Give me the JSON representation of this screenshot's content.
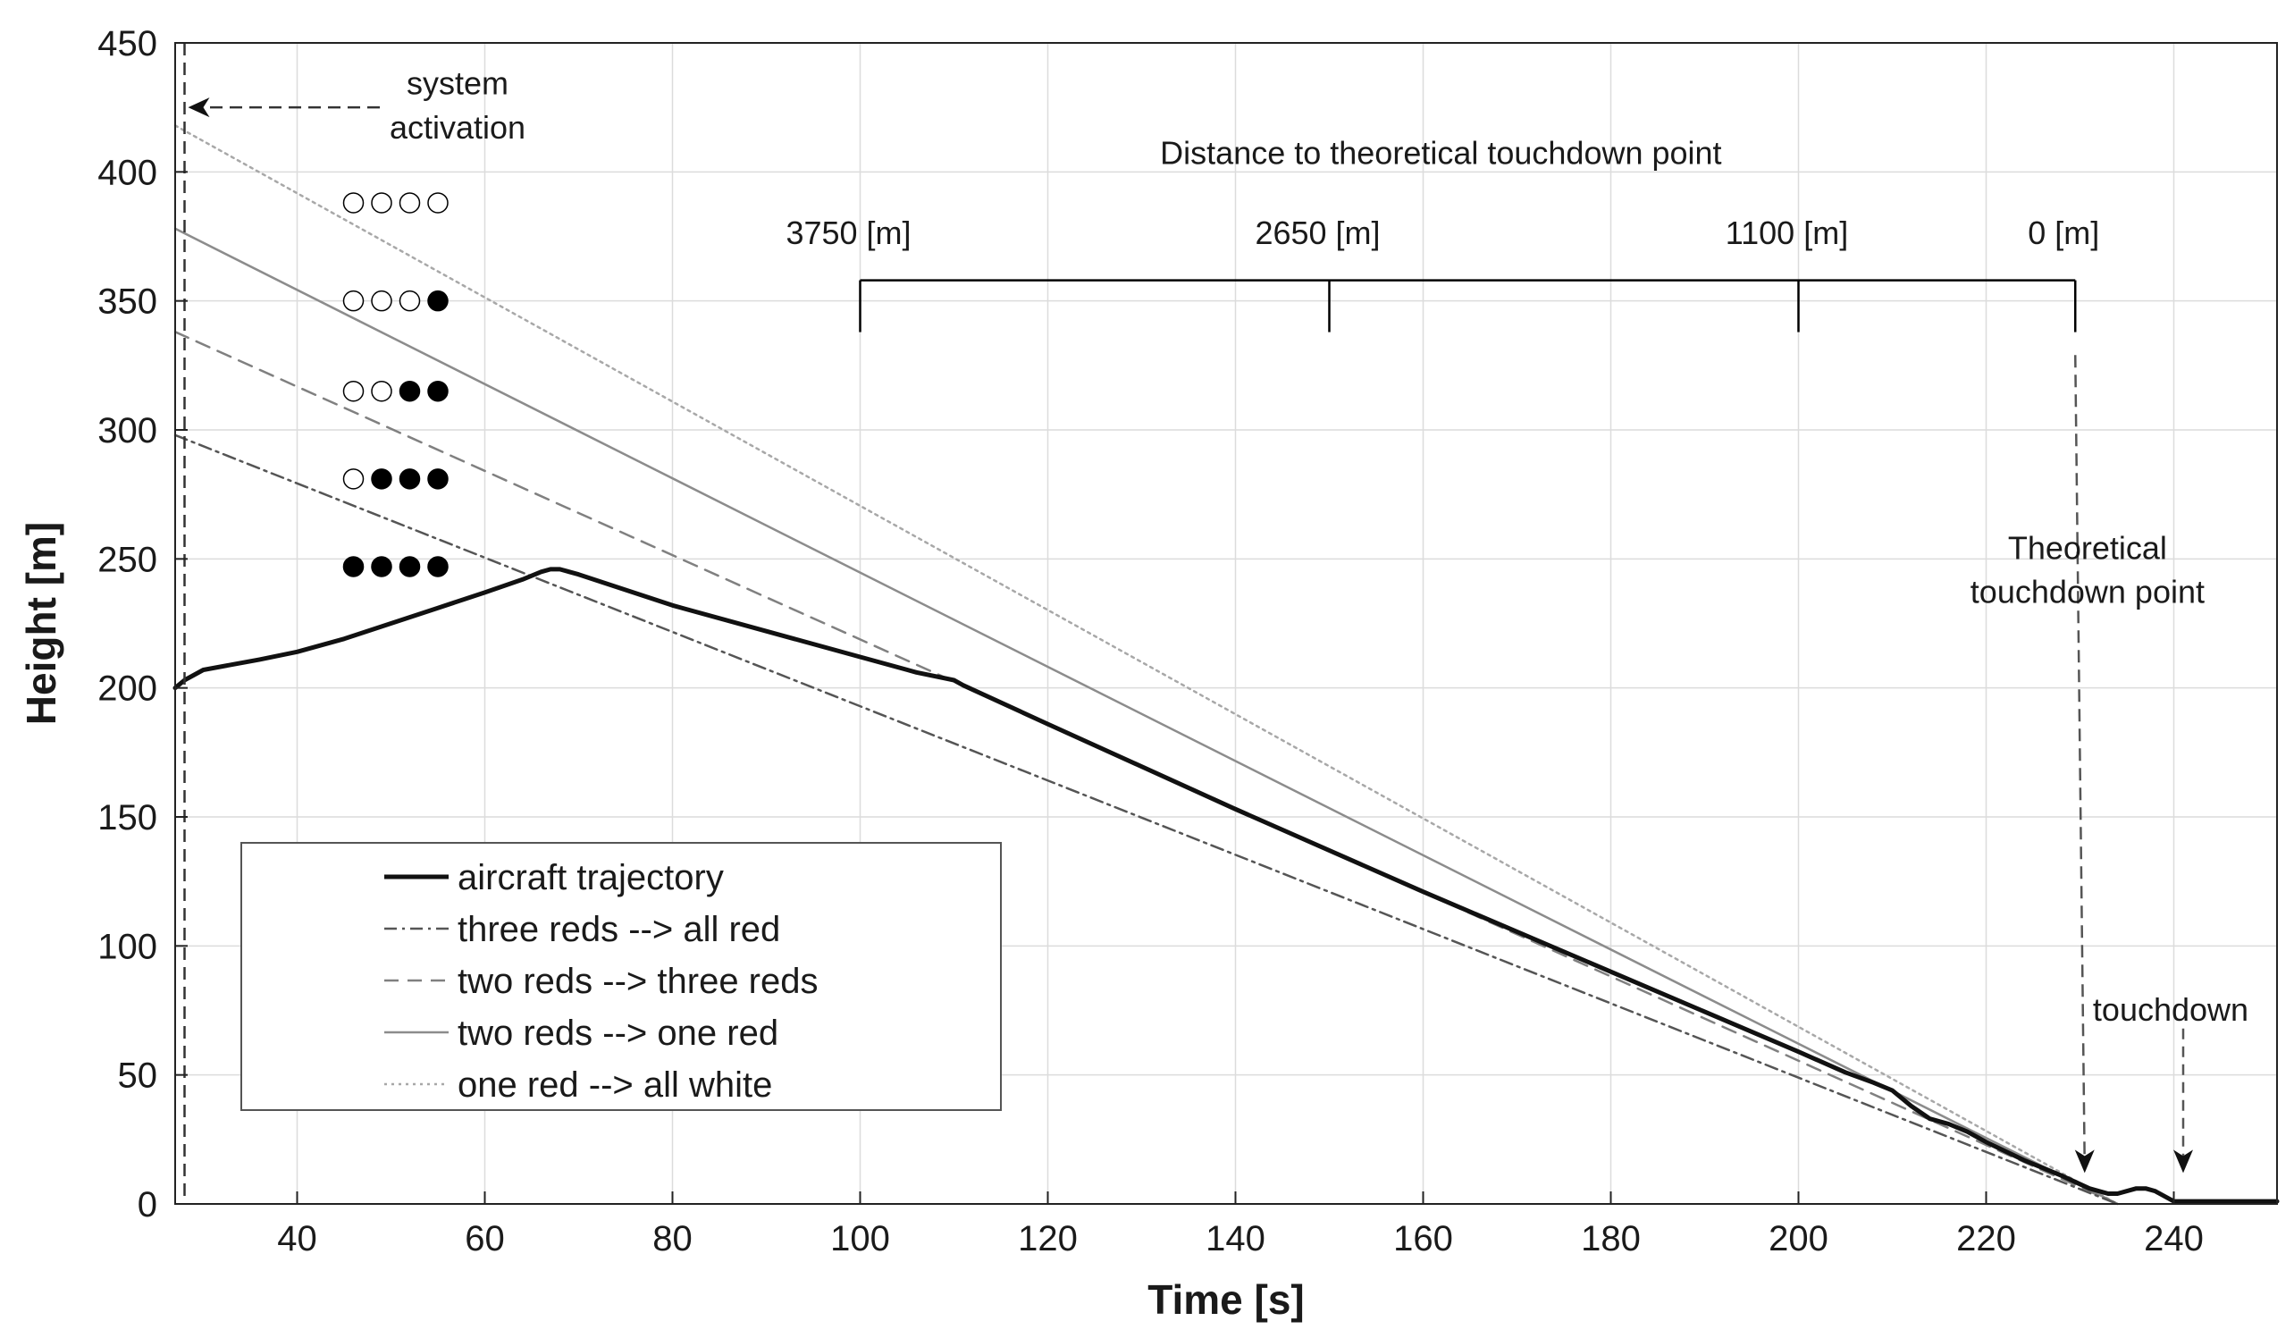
{
  "chart_data": {
    "type": "line",
    "title": "",
    "xlabel": "Time [s]",
    "ylabel": "Height [m]",
    "xlim": [
      27,
      251
    ],
    "ylim": [
      0,
      450
    ],
    "xticks": [
      40,
      60,
      80,
      100,
      120,
      140,
      160,
      180,
      200,
      220,
      240
    ],
    "yticks": [
      0,
      50,
      100,
      150,
      200,
      250,
      300,
      350,
      400,
      450
    ],
    "grid": true,
    "legend": "lower-left",
    "series": [
      {
        "name": "aircraft trajectory",
        "style": "solid-thick",
        "color": "#111111",
        "points": [
          [
            27,
            200
          ],
          [
            28,
            203
          ],
          [
            30,
            207
          ],
          [
            33,
            209
          ],
          [
            36,
            211
          ],
          [
            40,
            214
          ],
          [
            45,
            219
          ],
          [
            50,
            225
          ],
          [
            55,
            231
          ],
          [
            60,
            237
          ],
          [
            64,
            242
          ],
          [
            66,
            245
          ],
          [
            67,
            246
          ],
          [
            68,
            246
          ],
          [
            70,
            244
          ],
          [
            75,
            238
          ],
          [
            80,
            232
          ],
          [
            90,
            222
          ],
          [
            100,
            212
          ],
          [
            106,
            206
          ],
          [
            110,
            203
          ],
          [
            111,
            201
          ],
          [
            120,
            186
          ],
          [
            140,
            153
          ],
          [
            160,
            121
          ],
          [
            180,
            90
          ],
          [
            200,
            59
          ],
          [
            205,
            51
          ],
          [
            208,
            47
          ],
          [
            210,
            44
          ],
          [
            212,
            38
          ],
          [
            214,
            33
          ],
          [
            216,
            31
          ],
          [
            218,
            28
          ],
          [
            220,
            24
          ],
          [
            224,
            17
          ],
          [
            228,
            11
          ],
          [
            231,
            6
          ],
          [
            233,
            4
          ],
          [
            234,
            4
          ],
          [
            236,
            6
          ],
          [
            237,
            6
          ],
          [
            238,
            5
          ],
          [
            240,
            1
          ],
          [
            242,
            1
          ],
          [
            251,
            1
          ]
        ]
      },
      {
        "name": "three reds --> all red",
        "style": "dash-dot",
        "color": "#555555",
        "points": [
          [
            27,
            298
          ],
          [
            234,
            0
          ]
        ]
      },
      {
        "name": "two reds --> three reds",
        "style": "dashed",
        "color": "#808080",
        "points": [
          [
            27,
            338
          ],
          [
            234,
            0
          ]
        ]
      },
      {
        "name": "two reds --> one red",
        "style": "solid-thin",
        "color": "#8c8c8c",
        "points": [
          [
            27,
            378
          ],
          [
            234,
            0
          ]
        ]
      },
      {
        "name": "one red --> all white",
        "style": "dotted",
        "color": "#a8a8a8",
        "points": [
          [
            27,
            418
          ],
          [
            234,
            0
          ]
        ]
      }
    ],
    "light_rows": [
      {
        "y": 388,
        "pattern": [
          "white",
          "white",
          "white",
          "white"
        ]
      },
      {
        "y": 350,
        "pattern": [
          "white",
          "white",
          "white",
          "black"
        ]
      },
      {
        "y": 315,
        "pattern": [
          "white",
          "white",
          "black",
          "black"
        ]
      },
      {
        "y": 281,
        "pattern": [
          "white",
          "black",
          "black",
          "black"
        ]
      },
      {
        "y": 247,
        "pattern": [
          "black",
          "black",
          "black",
          "black"
        ]
      }
    ],
    "light_x": [
      46,
      49,
      52,
      55
    ],
    "distance_bracket": {
      "title": "Distance to theoretical touchdown point",
      "y": 358,
      "marks": [
        {
          "x": 100,
          "label": "3750 [m]"
        },
        {
          "x": 150,
          "label": "2650 [m]"
        },
        {
          "x": 200,
          "label": "1100 [m]"
        },
        {
          "x": 229.5,
          "label": "0 [m]"
        }
      ]
    },
    "annotations": {
      "system_activation": {
        "x": 28,
        "line1": "system",
        "line2": "activation"
      },
      "theoretical_touchdown": {
        "x": 229.5,
        "line1": "Theoretical",
        "line2": "touchdown point"
      },
      "touchdown": {
        "x": 241,
        "label": "touchdown"
      }
    }
  }
}
